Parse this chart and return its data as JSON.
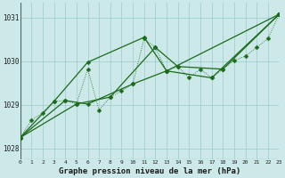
{
  "title": "Graphe pression niveau de la mer (hPa)",
  "background_color": "#cce8e8",
  "grid_color": "#99cccc",
  "line_color": "#1a6b1a",
  "xlim": [
    0,
    23
  ],
  "ylim": [
    1027.75,
    1031.35
  ],
  "xticks": [
    0,
    1,
    2,
    3,
    4,
    5,
    6,
    7,
    8,
    9,
    10,
    11,
    12,
    13,
    14,
    15,
    16,
    17,
    18,
    19,
    20,
    21,
    22,
    23
  ],
  "yticks": [
    1028,
    1029,
    1030,
    1031
  ],
  "series_dotted": [
    [
      0,
      1028.25
    ],
    [
      1,
      1028.65
    ],
    [
      2,
      1028.82
    ],
    [
      3,
      1029.08
    ],
    [
      4,
      1029.1
    ],
    [
      5,
      1029.02
    ],
    [
      6,
      1029.82
    ],
    [
      7,
      1028.88
    ],
    [
      8,
      1029.18
    ],
    [
      9,
      1029.32
    ],
    [
      10,
      1029.48
    ],
    [
      11,
      1030.52
    ],
    [
      12,
      1030.32
    ],
    [
      13,
      1029.78
    ],
    [
      14,
      1029.88
    ],
    [
      15,
      1029.62
    ],
    [
      16,
      1029.82
    ],
    [
      17,
      1029.62
    ],
    [
      18,
      1029.82
    ],
    [
      19,
      1030.02
    ],
    [
      20,
      1030.12
    ],
    [
      21,
      1030.32
    ],
    [
      22,
      1030.52
    ],
    [
      23,
      1031.08
    ]
  ],
  "series_line1": [
    [
      0,
      1028.25
    ],
    [
      3,
      1029.08
    ],
    [
      6,
      1029.98
    ],
    [
      11,
      1030.55
    ],
    [
      13,
      1029.78
    ],
    [
      23,
      1031.08
    ]
  ],
  "series_line2": [
    [
      0,
      1028.25
    ],
    [
      4,
      1029.1
    ],
    [
      6,
      1029.02
    ],
    [
      10,
      1029.48
    ],
    [
      13,
      1029.78
    ],
    [
      17,
      1029.62
    ],
    [
      23,
      1031.08
    ]
  ],
  "series_line3": [
    [
      0,
      1028.25
    ],
    [
      5,
      1029.02
    ],
    [
      8,
      1029.18
    ],
    [
      12,
      1030.32
    ],
    [
      14,
      1029.88
    ],
    [
      18,
      1029.82
    ],
    [
      23,
      1031.08
    ]
  ]
}
